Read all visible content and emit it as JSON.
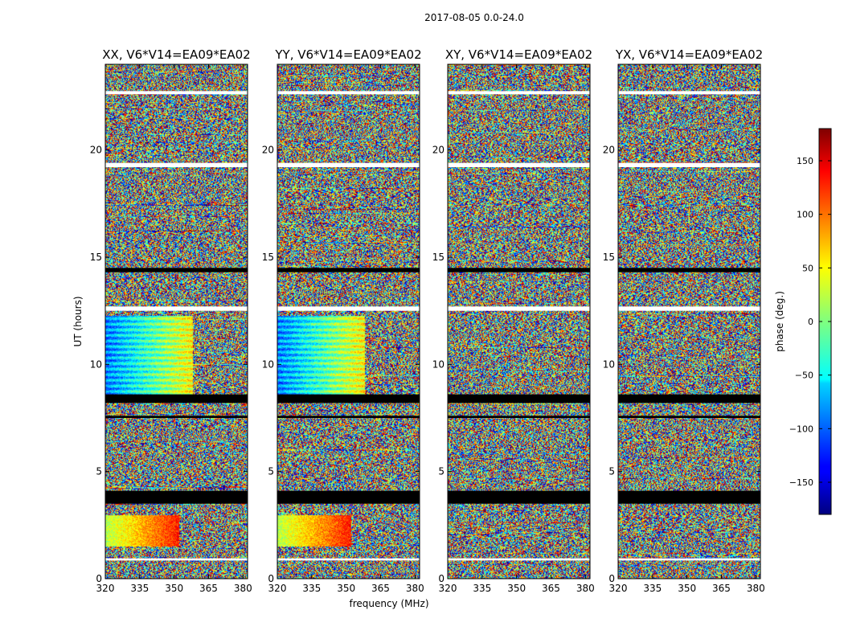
{
  "suptitle": "2017-08-05 0.0-24.0",
  "chart_data": {
    "type": "heatmap",
    "panels": [
      {
        "title": "XX, V6*V14=EA09*EA02"
      },
      {
        "title": "YY, V6*V14=EA09*EA02"
      },
      {
        "title": "XY, V6*V14=EA09*EA02"
      },
      {
        "title": "YX, V6*V14=EA09*EA02"
      }
    ],
    "xlabel": "frequency (MHz)",
    "ylabel": "UT (hours)",
    "x_ticks": [
      320,
      335,
      350,
      365,
      380
    ],
    "x_tick_labels": [
      "320",
      "335",
      "350",
      "365",
      "380"
    ],
    "xlim": [
      320,
      382
    ],
    "y_ticks": [
      0,
      5,
      10,
      15,
      20
    ],
    "y_tick_labels": [
      "0",
      "5",
      "10",
      "15",
      "20"
    ],
    "ylim": [
      0,
      24
    ],
    "colorbar": {
      "label": "phase (deg.)",
      "range": [
        -180,
        180
      ],
      "ticks": [
        -150,
        -100,
        -50,
        0,
        50,
        100,
        150
      ],
      "tick_labels": [
        "−150",
        "−100",
        "−50",
        "0",
        "50",
        "100",
        "150"
      ],
      "colormap": "jet"
    },
    "flagged_black_bands_ut_hours": [
      [
        8.2,
        8.6
      ],
      [
        7.5,
        7.6
      ],
      [
        3.5,
        4.1
      ],
      [
        14.3,
        14.5
      ]
    ],
    "blank_white_bands_ut_hours": [
      [
        12.5,
        12.7
      ],
      [
        19.2,
        19.4
      ],
      [
        0.85,
        0.95
      ],
      [
        22.6,
        22.75
      ]
    ],
    "colors": {
      "axis": "#000000",
      "flagged": "#000000",
      "blank": "#ffffff"
    }
  }
}
